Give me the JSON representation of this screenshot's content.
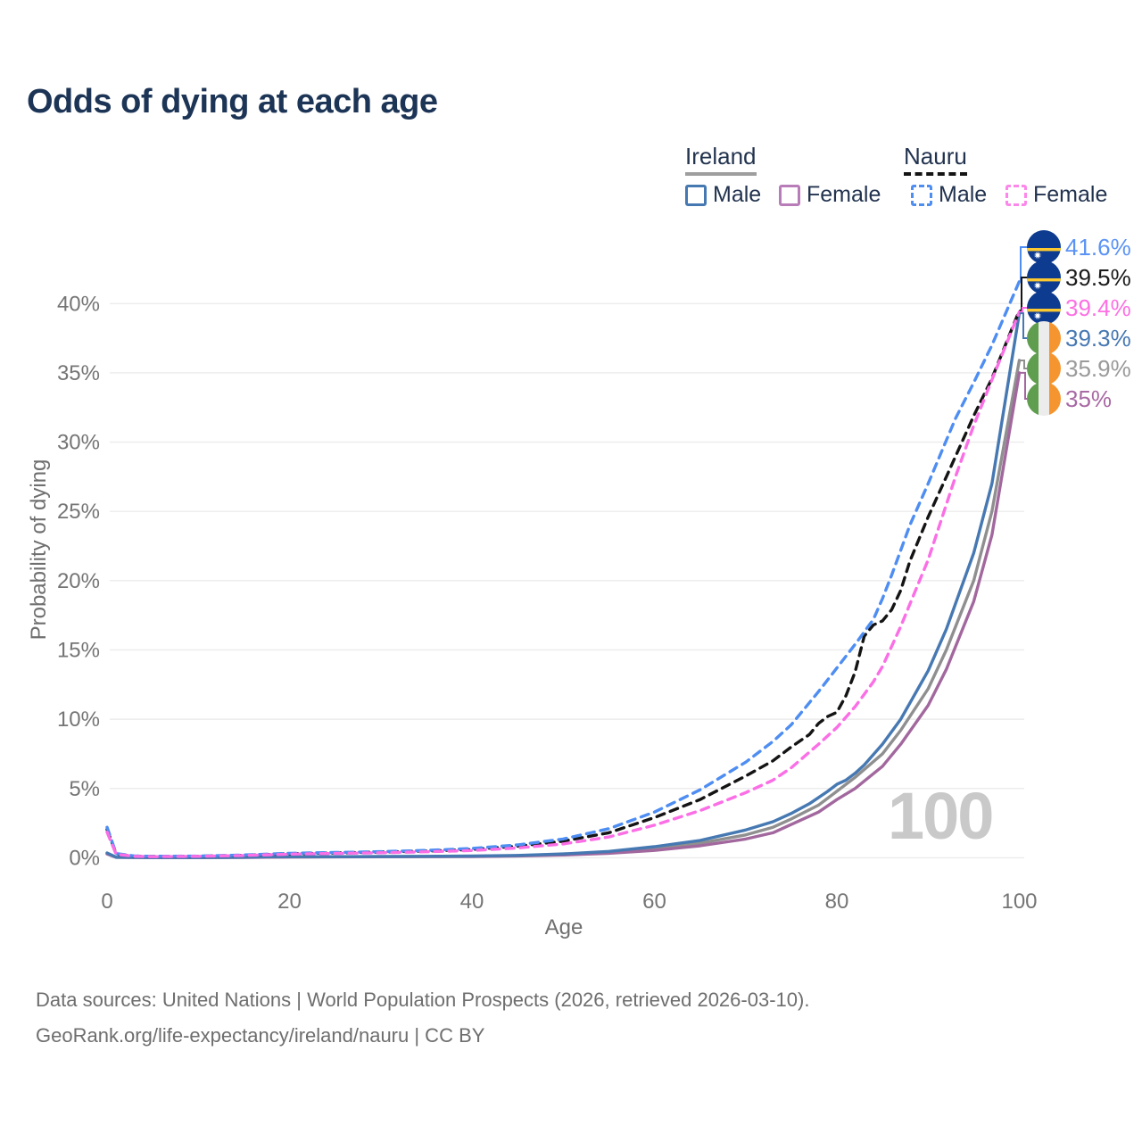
{
  "title": "Odds of dying at each age",
  "legend": {
    "groups": [
      {
        "label": "Ireland",
        "underline_color": "#9e9e9e",
        "underline_style": "solid",
        "items": [
          {
            "label": "Male",
            "color": "#4678b2",
            "dash": false
          },
          {
            "label": "Female",
            "color": "#b87db8",
            "dash": false
          }
        ]
      },
      {
        "label": "Nauru",
        "underline_color": "#141414",
        "underline_style": "dashed",
        "items": [
          {
            "label": "Male",
            "color": "#4e8df2",
            "dash": true
          },
          {
            "label": "Female",
            "color": "#fb87ea",
            "dash": true
          }
        ]
      }
    ]
  },
  "watermark": "100",
  "source_line1": "Data sources: United Nations | World Population Prospects (2026, retrieved 2026-03-10).",
  "source_line2": "GeoRank.org/life-expectancy/ireland/nauru | CC BY",
  "chart_data": {
    "type": "line",
    "title": "Odds of dying at each age",
    "xlabel": "Age",
    "ylabel": "Probability of dying",
    "xlim": [
      0,
      100
    ],
    "ylim": [
      0,
      43.5
    ],
    "x_ticks": [
      0,
      20,
      40,
      60,
      80,
      100
    ],
    "y_ticks": [
      0,
      5,
      10,
      15,
      20,
      25,
      30,
      35,
      40
    ],
    "y_tick_suffix": "%",
    "grid": "horizontal",
    "legend_position": "top-right",
    "series": [
      {
        "name": "Ireland all",
        "country": "ireland",
        "sex": "all",
        "color": "#8f8f8f",
        "dash": false,
        "flag": "ireland",
        "end_label": "35.9%",
        "end_label_color": "#9a9a9a",
        "points": [
          [
            0,
            0.3
          ],
          [
            1,
            0.035
          ],
          [
            5,
            0.01
          ],
          [
            10,
            0.01
          ],
          [
            15,
            0.03
          ],
          [
            20,
            0.06
          ],
          [
            30,
            0.08
          ],
          [
            40,
            0.1
          ],
          [
            45,
            0.15
          ],
          [
            50,
            0.24
          ],
          [
            55,
            0.39
          ],
          [
            60,
            0.66
          ],
          [
            65,
            1.05
          ],
          [
            70,
            1.65
          ],
          [
            73,
            2.2
          ],
          [
            75,
            2.8
          ],
          [
            78,
            3.8
          ],
          [
            80,
            4.8
          ],
          [
            82,
            5.8
          ],
          [
            85,
            7.5
          ],
          [
            87,
            9.2
          ],
          [
            90,
            12.2
          ],
          [
            92,
            15.0
          ],
          [
            95,
            20.0
          ],
          [
            97,
            25.0
          ],
          [
            100,
            35.9
          ]
        ]
      },
      {
        "name": "Ireland female",
        "country": "ireland",
        "sex": "female",
        "color": "#a2689e",
        "dash": false,
        "flag": "ireland",
        "end_label": "35%",
        "end_label_color": "#a869a4",
        "points": [
          [
            0,
            0.28
          ],
          [
            1,
            0.03
          ],
          [
            5,
            0.01
          ],
          [
            10,
            0.01
          ],
          [
            15,
            0.025
          ],
          [
            20,
            0.05
          ],
          [
            30,
            0.07
          ],
          [
            40,
            0.09
          ],
          [
            45,
            0.13
          ],
          [
            50,
            0.2
          ],
          [
            55,
            0.32
          ],
          [
            60,
            0.53
          ],
          [
            65,
            0.86
          ],
          [
            70,
            1.35
          ],
          [
            73,
            1.8
          ],
          [
            75,
            2.4
          ],
          [
            78,
            3.3
          ],
          [
            80,
            4.2
          ],
          [
            82,
            5.0
          ],
          [
            85,
            6.6
          ],
          [
            87,
            8.2
          ],
          [
            90,
            11.0
          ],
          [
            92,
            13.6
          ],
          [
            95,
            18.5
          ],
          [
            97,
            23.3
          ],
          [
            100,
            35.0
          ]
        ]
      },
      {
        "name": "Ireland male",
        "country": "ireland",
        "sex": "male",
        "color": "#4678b2",
        "dash": false,
        "flag": "ireland",
        "end_label": "39.3%",
        "end_label_color": "#4678b2",
        "points": [
          [
            0,
            0.35
          ],
          [
            1,
            0.04
          ],
          [
            5,
            0.01
          ],
          [
            10,
            0.01
          ],
          [
            15,
            0.04
          ],
          [
            18,
            0.07
          ],
          [
            20,
            0.08
          ],
          [
            25,
            0.08
          ],
          [
            30,
            0.09
          ],
          [
            35,
            0.1
          ],
          [
            40,
            0.12
          ],
          [
            45,
            0.17
          ],
          [
            50,
            0.28
          ],
          [
            55,
            0.46
          ],
          [
            60,
            0.8
          ],
          [
            65,
            1.25
          ],
          [
            70,
            2.0
          ],
          [
            73,
            2.6
          ],
          [
            75,
            3.2
          ],
          [
            77,
            3.9
          ],
          [
            79,
            4.8
          ],
          [
            80,
            5.3
          ],
          [
            81,
            5.6
          ],
          [
            82,
            6.1
          ],
          [
            83,
            6.7
          ],
          [
            85,
            8.2
          ],
          [
            87,
            10.0
          ],
          [
            90,
            13.5
          ],
          [
            92,
            16.5
          ],
          [
            95,
            22.0
          ],
          [
            97,
            27.0
          ],
          [
            100,
            39.3
          ]
        ]
      },
      {
        "name": "Nauru all",
        "country": "nauru",
        "sex": "all",
        "color": "#141414",
        "dash": true,
        "flag": "nauru",
        "end_label": "39.5%",
        "end_label_color": "#1a1a1a",
        "points": [
          [
            0,
            2.05
          ],
          [
            1,
            0.27
          ],
          [
            3,
            0.11
          ],
          [
            5,
            0.09
          ],
          [
            10,
            0.11
          ],
          [
            15,
            0.18
          ],
          [
            20,
            0.29
          ],
          [
            25,
            0.35
          ],
          [
            30,
            0.41
          ],
          [
            35,
            0.48
          ],
          [
            40,
            0.6
          ],
          [
            45,
            0.83
          ],
          [
            50,
            1.2
          ],
          [
            55,
            1.8
          ],
          [
            60,
            2.9
          ],
          [
            65,
            4.2
          ],
          [
            70,
            5.9
          ],
          [
            73,
            7.0
          ],
          [
            75,
            8.0
          ],
          [
            77,
            8.9
          ],
          [
            78,
            9.7
          ],
          [
            79,
            10.2
          ],
          [
            80,
            10.5
          ],
          [
            81,
            11.7
          ],
          [
            82,
            13.4
          ],
          [
            83,
            16.0
          ],
          [
            84,
            16.8
          ],
          [
            85,
            17.1
          ],
          [
            86,
            17.9
          ],
          [
            87,
            19.3
          ],
          [
            88,
            21.4
          ],
          [
            90,
            24.6
          ],
          [
            92,
            27.5
          ],
          [
            95,
            31.9
          ],
          [
            97,
            34.6
          ],
          [
            100,
            39.5
          ]
        ]
      },
      {
        "name": "Nauru male",
        "country": "nauru",
        "sex": "male",
        "color": "#4e8df2",
        "dash": true,
        "flag": "nauru",
        "end_label": "41.6%",
        "end_label_color": "#5b93f5",
        "points": [
          [
            0,
            2.2
          ],
          [
            1,
            0.3
          ],
          [
            3,
            0.13
          ],
          [
            5,
            0.1
          ],
          [
            10,
            0.12
          ],
          [
            15,
            0.2
          ],
          [
            20,
            0.32
          ],
          [
            25,
            0.38
          ],
          [
            30,
            0.44
          ],
          [
            35,
            0.53
          ],
          [
            40,
            0.67
          ],
          [
            45,
            0.93
          ],
          [
            50,
            1.35
          ],
          [
            55,
            2.1
          ],
          [
            60,
            3.3
          ],
          [
            65,
            4.9
          ],
          [
            70,
            6.9
          ],
          [
            73,
            8.4
          ],
          [
            75,
            9.6
          ],
          [
            78,
            12.0
          ],
          [
            80,
            13.7
          ],
          [
            82,
            15.4
          ],
          [
            84,
            17.2
          ],
          [
            85,
            18.7
          ],
          [
            86,
            20.4
          ],
          [
            87,
            22.2
          ],
          [
            88,
            24.0
          ],
          [
            90,
            27.0
          ],
          [
            93,
            31.7
          ],
          [
            95,
            34.3
          ],
          [
            97,
            37.0
          ],
          [
            100,
            41.6
          ]
        ]
      },
      {
        "name": "Nauru female",
        "country": "nauru",
        "sex": "female",
        "color": "#fb6ee5",
        "dash": true,
        "flag": "nauru",
        "end_label": "39.4%",
        "end_label_color": "#fd70e3",
        "points": [
          [
            0,
            1.85
          ],
          [
            1,
            0.25
          ],
          [
            3,
            0.1
          ],
          [
            5,
            0.08
          ],
          [
            10,
            0.1
          ],
          [
            15,
            0.16
          ],
          [
            20,
            0.26
          ],
          [
            25,
            0.31
          ],
          [
            30,
            0.36
          ],
          [
            35,
            0.43
          ],
          [
            40,
            0.52
          ],
          [
            45,
            0.71
          ],
          [
            50,
            1.0
          ],
          [
            55,
            1.5
          ],
          [
            60,
            2.35
          ],
          [
            65,
            3.4
          ],
          [
            70,
            4.7
          ],
          [
            73,
            5.6
          ],
          [
            75,
            6.5
          ],
          [
            78,
            8.2
          ],
          [
            80,
            9.4
          ],
          [
            82,
            10.9
          ],
          [
            84,
            12.7
          ],
          [
            85,
            13.8
          ],
          [
            87,
            16.7
          ],
          [
            88,
            18.3
          ],
          [
            90,
            21.5
          ],
          [
            93,
            27.5
          ],
          [
            95,
            31.2
          ],
          [
            97,
            34.5
          ],
          [
            100,
            39.4
          ]
        ]
      }
    ]
  }
}
